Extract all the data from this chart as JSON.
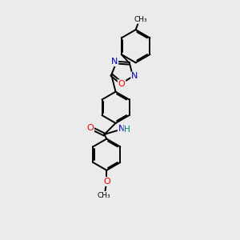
{
  "background_color": "#ebebeb",
  "bond_color": "#000000",
  "atom_colors": {
    "N": "#0000cc",
    "O": "#ff0000",
    "H": "#008080",
    "C": "#000000"
  },
  "figsize": [
    3.0,
    3.0
  ],
  "dpi": 100
}
